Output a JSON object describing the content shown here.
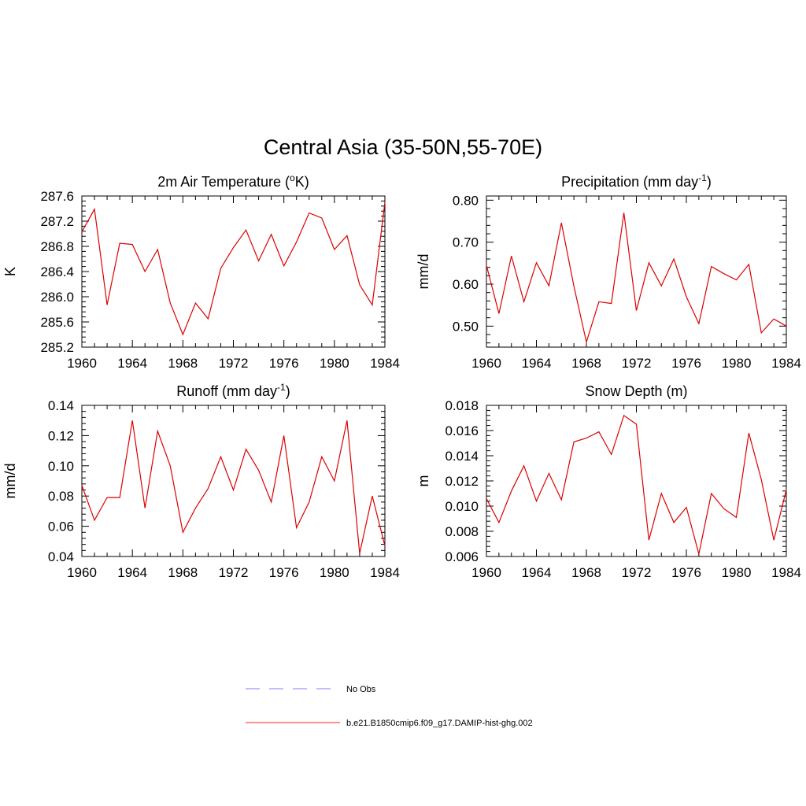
{
  "main_title": "Central Asia (35-50N,55-70E)",
  "legend": [
    {
      "label": "No Obs",
      "color": "#9999ff",
      "dash": true
    },
    {
      "label": "b.e21.B1850cmip6.f09_g17.DAMIP-hist-ghg.002",
      "color": "#ff4d4d",
      "dash": false
    }
  ],
  "chart_data": [
    {
      "type": "line",
      "title_main": "2m Air Temperature (",
      "title_sup": "o",
      "title_end": "K)",
      "ylabel": "K",
      "xlim": [
        1960,
        1984
      ],
      "ylim": [
        285.2,
        287.6
      ],
      "xticks": [
        1960,
        1964,
        1968,
        1972,
        1976,
        1980,
        1984
      ],
      "yticks": [
        "285.2",
        "285.6",
        "286.0",
        "286.4",
        "286.8",
        "287.2",
        "287.6"
      ],
      "x": [
        1960,
        1961,
        1962,
        1963,
        1964,
        1965,
        1966,
        1967,
        1968,
        1969,
        1970,
        1971,
        1972,
        1973,
        1974,
        1975,
        1976,
        1977,
        1978,
        1979,
        1980,
        1981,
        1982,
        1983,
        1984
      ],
      "series": [
        {
          "color": "#dd0000",
          "values": [
            287.03,
            287.39,
            285.87,
            286.85,
            286.83,
            286.4,
            286.75,
            285.9,
            285.4,
            285.9,
            285.65,
            286.45,
            286.78,
            287.06,
            286.57,
            286.99,
            286.49,
            286.87,
            287.33,
            287.25,
            286.75,
            286.97,
            286.19,
            285.87,
            287.5
          ]
        }
      ]
    },
    {
      "type": "line",
      "title_main": "Precipitation (mm day",
      "title_sup": "-1",
      "title_end": ")",
      "ylabel": "mm/d",
      "xlim": [
        1960,
        1984
      ],
      "ylim": [
        0.45,
        0.81
      ],
      "xticks": [
        1960,
        1964,
        1968,
        1972,
        1976,
        1980,
        1984
      ],
      "yticks": [
        "0.50",
        "0.60",
        "0.70",
        "0.80"
      ],
      "x": [
        1960,
        1961,
        1962,
        1963,
        1964,
        1965,
        1966,
        1967,
        1968,
        1969,
        1970,
        1971,
        1972,
        1973,
        1974,
        1975,
        1976,
        1977,
        1978,
        1979,
        1980,
        1981,
        1982,
        1983,
        1984
      ],
      "series": [
        {
          "color": "#dd0000",
          "values": [
            0.645,
            0.53,
            0.667,
            0.558,
            0.651,
            0.596,
            0.746,
            0.595,
            0.462,
            0.558,
            0.554,
            0.77,
            0.537,
            0.651,
            0.596,
            0.66,
            0.57,
            0.506,
            0.642,
            0.625,
            0.61,
            0.647,
            0.484,
            0.517,
            0.5
          ]
        }
      ]
    },
    {
      "type": "line",
      "title_main": "Runoff (mm day",
      "title_sup": "-1",
      "title_end": ")",
      "ylabel": "mm/d",
      "xlim": [
        1960,
        1984
      ],
      "ylim": [
        0.04,
        0.14
      ],
      "xticks": [
        1960,
        1964,
        1968,
        1972,
        1976,
        1980,
        1984
      ],
      "yticks": [
        "0.04",
        "0.06",
        "0.08",
        "0.10",
        "0.12",
        "0.14"
      ],
      "x": [
        1960,
        1961,
        1962,
        1963,
        1964,
        1965,
        1966,
        1967,
        1968,
        1969,
        1970,
        1971,
        1972,
        1973,
        1974,
        1975,
        1976,
        1977,
        1978,
        1979,
        1980,
        1981,
        1982,
        1983,
        1984
      ],
      "series": [
        {
          "color": "#dd0000",
          "values": [
            0.087,
            0.064,
            0.079,
            0.079,
            0.13,
            0.072,
            0.123,
            0.1,
            0.056,
            0.072,
            0.085,
            0.106,
            0.084,
            0.111,
            0.097,
            0.076,
            0.12,
            0.059,
            0.076,
            0.106,
            0.09,
            0.13,
            0.042,
            0.08,
            0.047
          ]
        }
      ]
    },
    {
      "type": "line",
      "title_main": "Snow Depth (m)",
      "title_sup": "",
      "title_end": "",
      "ylabel": "m",
      "xlim": [
        1960,
        1984
      ],
      "ylim": [
        0.006,
        0.018
      ],
      "xticks": [
        1960,
        1964,
        1968,
        1972,
        1976,
        1980,
        1984
      ],
      "yticks": [
        "0.006",
        "0.008",
        "0.010",
        "0.012",
        "0.014",
        "0.016",
        "0.018"
      ],
      "x": [
        1960,
        1961,
        1962,
        1963,
        1964,
        1965,
        1966,
        1967,
        1968,
        1969,
        1970,
        1971,
        1972,
        1973,
        1974,
        1975,
        1976,
        1977,
        1978,
        1979,
        1980,
        1981,
        1982,
        1983,
        1984
      ],
      "series": [
        {
          "color": "#dd0000",
          "values": [
            0.0106,
            0.0087,
            0.0112,
            0.0132,
            0.0104,
            0.0126,
            0.0105,
            0.0151,
            0.0154,
            0.0159,
            0.0141,
            0.0172,
            0.0165,
            0.0073,
            0.011,
            0.0087,
            0.0099,
            0.0062,
            0.011,
            0.0098,
            0.0091,
            0.0158,
            0.0121,
            0.0073,
            0.0113
          ]
        }
      ]
    }
  ]
}
